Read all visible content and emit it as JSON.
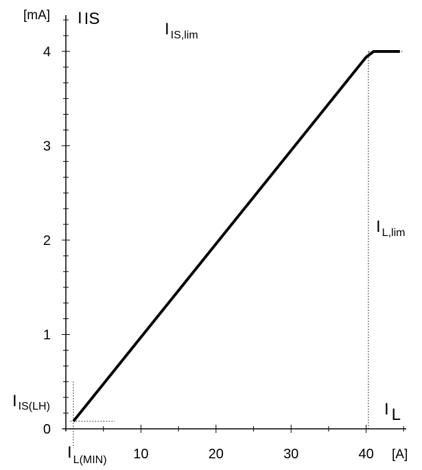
{
  "chart_data": {
    "type": "line",
    "x_unit": "[A]",
    "y_unit": "[mA]",
    "xlim": [
      0,
      45
    ],
    "ylim": [
      0,
      4
    ],
    "x_ticks": [
      {
        "value": 10,
        "label": "10"
      },
      {
        "value": 20,
        "label": "20"
      },
      {
        "value": 30,
        "label": "30"
      },
      {
        "value": 40,
        "label": "40"
      }
    ],
    "y_ticks": [
      {
        "value": 0,
        "label": "0"
      },
      {
        "value": 1,
        "label": "1"
      },
      {
        "value": 2,
        "label": "2"
      },
      {
        "value": 3,
        "label": "3"
      },
      {
        "value": 4,
        "label": "4"
      }
    ],
    "x_minor_step": 5,
    "y_minor_step": 0.1667,
    "series": [
      {
        "x": [
          1,
          40,
          41,
          44.5
        ],
        "y": [
          0.08,
          3.94,
          4.0,
          4.0
        ],
        "color": "#000000"
      }
    ],
    "reference_lines": [
      {
        "points": [
          [
            40.3,
            4.0
          ],
          [
            45,
            4.0
          ]
        ]
      },
      {
        "points": [
          [
            40.3,
            0
          ],
          [
            40.3,
            4.0
          ]
        ]
      },
      {
        "points": [
          [
            1,
            0.5
          ],
          [
            1,
            -0.2
          ]
        ]
      },
      {
        "points": [
          [
            0.6,
            0.08
          ],
          [
            6.5,
            0.08
          ]
        ]
      }
    ],
    "annotations": [
      {
        "id": "y-axis-symbol",
        "main": "I",
        "sub": "IS"
      },
      {
        "id": "limit-current-label",
        "main": "I",
        "sub": "IS,lim"
      },
      {
        "id": "load-limit-label",
        "main": "I",
        "sub": "L,lim"
      },
      {
        "id": "sense-offset-label",
        "main": "I",
        "sub": "IS(LH)"
      },
      {
        "id": "x-axis-symbol",
        "main": "I",
        "sub": "L"
      },
      {
        "id": "min-load-label",
        "main": "I",
        "sub": "L(MIN)"
      }
    ]
  }
}
